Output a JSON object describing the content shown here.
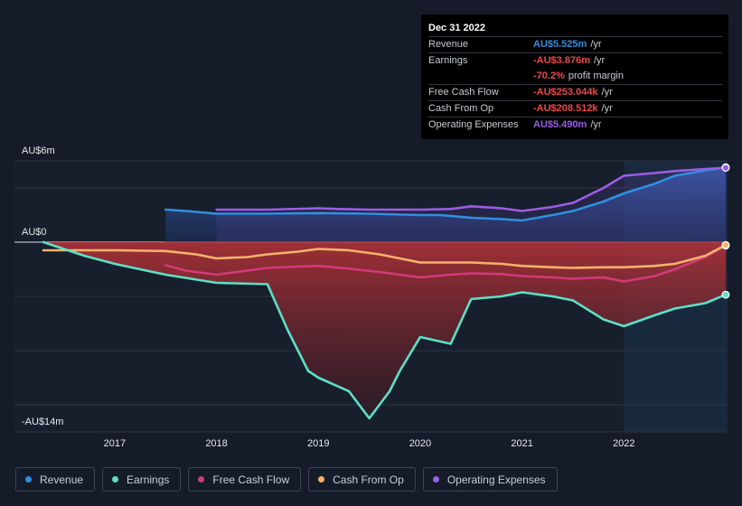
{
  "chart_data": {
    "type": "area",
    "ylim": [
      -14,
      6
    ],
    "y_axis_labels": [
      {
        "value": 6,
        "text": "AU$6m"
      },
      {
        "value": 0,
        "text": "AU$0"
      },
      {
        "value": -14,
        "text": "-AU$14m"
      }
    ],
    "x_ticks": [
      {
        "value": 2017.0,
        "text": "2017"
      },
      {
        "value": 2018.0,
        "text": "2018"
      },
      {
        "value": 2019.0,
        "text": "2019"
      },
      {
        "value": 2020.0,
        "text": "2020"
      },
      {
        "value": 2021.0,
        "text": "2021"
      },
      {
        "value": 2022.0,
        "text": "2022"
      }
    ],
    "x_range": [
      2016.3,
      2023.0
    ],
    "forecast_start": 2022.0,
    "series": [
      {
        "name": "Revenue",
        "key": "revenue",
        "color": "#2f8fe0",
        "x": [
          2017.5,
          2017.7,
          2018.0,
          2018.5,
          2019.0,
          2019.5,
          2020.0,
          2020.2,
          2020.5,
          2020.8,
          2021.0,
          2021.3,
          2021.5,
          2021.8,
          2022.0,
          2022.3,
          2022.5,
          2022.8,
          2023.0
        ],
        "values": [
          2.4,
          2.3,
          2.1,
          2.1,
          2.15,
          2.1,
          2.0,
          2.0,
          1.8,
          1.7,
          1.6,
          2.0,
          2.3,
          3.0,
          3.6,
          4.3,
          4.9,
          5.3,
          5.525
        ]
      },
      {
        "name": "Earnings",
        "key": "earnings",
        "color": "#5ce0c6",
        "x": [
          2016.3,
          2016.7,
          2017.0,
          2017.5,
          2018.0,
          2018.5,
          2018.7,
          2018.9,
          2019.0,
          2019.3,
          2019.5,
          2019.7,
          2019.8,
          2020.0,
          2020.3,
          2020.5,
          2020.8,
          2021.0,
          2021.3,
          2021.5,
          2021.8,
          2022.0,
          2022.3,
          2022.5,
          2022.8,
          2023.0
        ],
        "values": [
          0,
          -1.0,
          -1.6,
          -2.4,
          -3.0,
          -3.1,
          -6.5,
          -9.5,
          -10.0,
          -11.0,
          -13.0,
          -11.0,
          -9.5,
          -7.0,
          -7.5,
          -4.2,
          -4.0,
          -3.7,
          -4.0,
          -4.3,
          -5.7,
          -6.2,
          -5.4,
          -4.9,
          -4.5,
          -3.876
        ]
      },
      {
        "name": "Free Cash Flow",
        "key": "fcf",
        "color": "#d13b7a",
        "x": [
          2017.5,
          2017.7,
          2018.0,
          2018.3,
          2018.5,
          2018.8,
          2019.0,
          2019.3,
          2019.6,
          2020.0,
          2020.3,
          2020.5,
          2020.8,
          2021.0,
          2021.3,
          2021.5,
          2021.8,
          2022.0,
          2022.3,
          2022.5,
          2022.8,
          2023.0
        ],
        "values": [
          -1.7,
          -2.1,
          -2.4,
          -2.1,
          -1.9,
          -1.8,
          -1.75,
          -1.95,
          -2.2,
          -2.6,
          -2.4,
          -2.3,
          -2.35,
          -2.5,
          -2.6,
          -2.7,
          -2.6,
          -2.9,
          -2.5,
          -2.0,
          -1.1,
          -0.253
        ]
      },
      {
        "name": "Cash From Op",
        "key": "cfo",
        "color": "#f5b36a",
        "x": [
          2016.3,
          2017.0,
          2017.5,
          2017.8,
          2018.0,
          2018.3,
          2018.5,
          2018.8,
          2019.0,
          2019.3,
          2019.6,
          2020.0,
          2020.3,
          2020.5,
          2020.8,
          2021.0,
          2021.3,
          2021.5,
          2021.8,
          2022.0,
          2022.3,
          2022.5,
          2022.8,
          2023.0
        ],
        "values": [
          -0.6,
          -0.6,
          -0.65,
          -0.9,
          -1.2,
          -1.1,
          -0.9,
          -0.7,
          -0.5,
          -0.6,
          -0.9,
          -1.5,
          -1.5,
          -1.5,
          -1.6,
          -1.75,
          -1.85,
          -1.9,
          -1.85,
          -1.85,
          -1.75,
          -1.6,
          -1.0,
          -0.209
        ]
      },
      {
        "name": "Operating Expenses",
        "key": "opex",
        "color": "#9b5de5",
        "x": [
          2018.0,
          2018.5,
          2019.0,
          2019.2,
          2019.5,
          2020.0,
          2020.3,
          2020.5,
          2020.8,
          2021.0,
          2021.3,
          2021.5,
          2021.8,
          2022.0,
          2022.3,
          2022.5,
          2022.8,
          2023.0
        ],
        "values": [
          2.4,
          2.4,
          2.5,
          2.45,
          2.4,
          2.4,
          2.45,
          2.65,
          2.5,
          2.3,
          2.6,
          2.9,
          4.0,
          4.9,
          5.1,
          5.25,
          5.4,
          5.49
        ]
      }
    ]
  },
  "tooltip": {
    "date": "Dec 31 2022",
    "rows": [
      {
        "label": "Revenue",
        "value": "AU$5.525m",
        "suffix": "/yr",
        "color": "#2f8fe0"
      },
      {
        "label": "Earnings",
        "value": "-AU$3.876m",
        "suffix": "/yr",
        "color": "#e84848"
      },
      {
        "label": "",
        "value": "-70.2%",
        "suffix": "profit margin",
        "color": "#e84848"
      },
      {
        "label": "Free Cash Flow",
        "value": "-AU$253.044k",
        "suffix": "/yr",
        "color": "#e84848"
      },
      {
        "label": "Cash From Op",
        "value": "-AU$208.512k",
        "suffix": "/yr",
        "color": "#e84848"
      },
      {
        "label": "Operating Expenses",
        "value": "AU$5.490m",
        "suffix": "/yr",
        "color": "#9b5de5"
      }
    ]
  },
  "legend": [
    {
      "label": "Revenue",
      "color": "#2f8fe0"
    },
    {
      "label": "Earnings",
      "color": "#5ce0c6"
    },
    {
      "label": "Free Cash Flow",
      "color": "#d13b7a"
    },
    {
      "label": "Cash From Op",
      "color": "#f5b36a"
    },
    {
      "label": "Operating Expenses",
      "color": "#9b5de5"
    }
  ]
}
